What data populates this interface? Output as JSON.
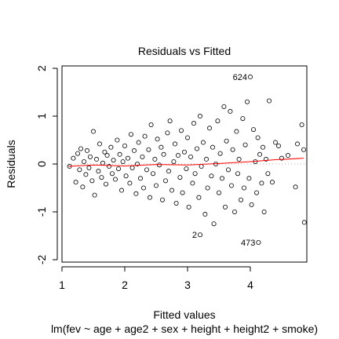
{
  "chart_data": {
    "type": "scatter",
    "title": "Residuals vs Fitted",
    "xlabel": "Fitted values",
    "subtitle": "lm(fev ~ age + age2 + sex + height + height2 + smoke)",
    "ylabel": "Residuals",
    "xlim": [
      1.0,
      4.9
    ],
    "ylim": [
      -2.05,
      2.05
    ],
    "x_ticks": [
      1,
      2,
      3,
      4
    ],
    "y_ticks": [
      -2,
      -1,
      0,
      1,
      2
    ],
    "x_tick_labels": [
      "1",
      "2",
      "3",
      "4"
    ],
    "y_tick_labels": [
      "-2",
      "-1",
      "0",
      "1",
      "2"
    ],
    "zero_line": 0,
    "smooth_color": "#ff0000",
    "point_color": "#000000",
    "smooth": [
      {
        "x": 1.1,
        "y": -0.05
      },
      {
        "x": 1.5,
        "y": -0.02
      },
      {
        "x": 2.0,
        "y": -0.04
      },
      {
        "x": 2.5,
        "y": -0.01
      },
      {
        "x": 3.0,
        "y": -0.02
      },
      {
        "x": 3.5,
        "y": 0.01
      },
      {
        "x": 4.0,
        "y": 0.05
      },
      {
        "x": 4.4,
        "y": 0.09
      },
      {
        "x": 4.85,
        "y": 0.12
      }
    ],
    "labeled_points": [
      {
        "label": "624",
        "x": 4.0,
        "y": 1.82
      },
      {
        "label": "2",
        "x": 3.2,
        "y": -1.48
      },
      {
        "label": "473",
        "x": 4.13,
        "y": -1.64
      }
    ],
    "points": [
      {
        "x": 1.12,
        "y": -0.05
      },
      {
        "x": 1.18,
        "y": 0.12
      },
      {
        "x": 1.22,
        "y": -0.38
      },
      {
        "x": 1.25,
        "y": 0.22
      },
      {
        "x": 1.28,
        "y": -0.12
      },
      {
        "x": 1.3,
        "y": 0.32
      },
      {
        "x": 1.33,
        "y": -0.48
      },
      {
        "x": 1.35,
        "y": 0.05
      },
      {
        "x": 1.38,
        "y": -0.22
      },
      {
        "x": 1.4,
        "y": 0.28
      },
      {
        "x": 1.43,
        "y": -0.08
      },
      {
        "x": 1.45,
        "y": 0.15
      },
      {
        "x": 1.48,
        "y": -0.35
      },
      {
        "x": 1.5,
        "y": 0.68
      },
      {
        "x": 1.52,
        "y": -0.65
      },
      {
        "x": 1.55,
        "y": 0.1
      },
      {
        "x": 1.58,
        "y": -0.15
      },
      {
        "x": 1.6,
        "y": 0.42
      },
      {
        "x": 1.63,
        "y": -0.28
      },
      {
        "x": 1.65,
        "y": 0.02
      },
      {
        "x": 1.68,
        "y": 0.25
      },
      {
        "x": 1.7,
        "y": -0.42
      },
      {
        "x": 1.72,
        "y": 0.18
      },
      {
        "x": 1.75,
        "y": -0.05
      },
      {
        "x": 1.78,
        "y": 0.35
      },
      {
        "x": 1.8,
        "y": -0.2
      },
      {
        "x": 1.82,
        "y": 0.08
      },
      {
        "x": 1.85,
        "y": -0.32
      },
      {
        "x": 1.88,
        "y": 0.5
      },
      {
        "x": 1.9,
        "y": -0.1
      },
      {
        "x": 1.92,
        "y": 0.2
      },
      {
        "x": 1.95,
        "y": -0.55
      },
      {
        "x": 1.97,
        "y": 0.05
      },
      {
        "x": 2.0,
        "y": 0.38
      },
      {
        "x": 2.02,
        "y": -0.25
      },
      {
        "x": 2.05,
        "y": 0.12
      },
      {
        "x": 2.08,
        "y": -0.4
      },
      {
        "x": 2.1,
        "y": 0.62
      },
      {
        "x": 2.12,
        "y": -0.08
      },
      {
        "x": 2.15,
        "y": 0.28
      },
      {
        "x": 2.18,
        "y": -0.62
      },
      {
        "x": 2.2,
        "y": 0.0
      },
      {
        "x": 2.22,
        "y": 0.45
      },
      {
        "x": 2.25,
        "y": -0.3
      },
      {
        "x": 2.28,
        "y": 0.15
      },
      {
        "x": 2.3,
        "y": -0.5
      },
      {
        "x": 2.32,
        "y": 0.58
      },
      {
        "x": 2.35,
        "y": -0.12
      },
      {
        "x": 2.38,
        "y": 0.3
      },
      {
        "x": 2.4,
        "y": -0.7
      },
      {
        "x": 2.42,
        "y": 0.82
      },
      {
        "x": 2.45,
        "y": -0.2
      },
      {
        "x": 2.48,
        "y": 0.1
      },
      {
        "x": 2.5,
        "y": -0.45
      },
      {
        "x": 2.52,
        "y": 0.52
      },
      {
        "x": 2.55,
        "y": -0.02
      },
      {
        "x": 2.58,
        "y": 0.35
      },
      {
        "x": 2.6,
        "y": -0.75
      },
      {
        "x": 2.62,
        "y": 0.2
      },
      {
        "x": 2.65,
        "y": -0.35
      },
      {
        "x": 2.68,
        "y": 0.65
      },
      {
        "x": 2.7,
        "y": -0.15
      },
      {
        "x": 2.72,
        "y": 0.9
      },
      {
        "x": 2.75,
        "y": -0.55
      },
      {
        "x": 2.78,
        "y": 0.05
      },
      {
        "x": 2.8,
        "y": 0.42
      },
      {
        "x": 2.82,
        "y": -0.82
      },
      {
        "x": 2.85,
        "y": 0.18
      },
      {
        "x": 2.88,
        "y": -0.28
      },
      {
        "x": 2.9,
        "y": 0.7
      },
      {
        "x": 2.92,
        "y": -0.6
      },
      {
        "x": 2.95,
        "y": 0.25
      },
      {
        "x": 2.98,
        "y": -0.1
      },
      {
        "x": 3.0,
        "y": 0.55
      },
      {
        "x": 3.02,
        "y": -0.9
      },
      {
        "x": 3.05,
        "y": 0.15
      },
      {
        "x": 3.08,
        "y": -0.4
      },
      {
        "x": 3.1,
        "y": 0.85
      },
      {
        "x": 3.12,
        "y": -0.2
      },
      {
        "x": 3.15,
        "y": 0.32
      },
      {
        "x": 3.18,
        "y": -0.7
      },
      {
        "x": 3.2,
        "y": 1.0
      },
      {
        "x": 3.22,
        "y": -0.05
      },
      {
        "x": 3.25,
        "y": 0.45
      },
      {
        "x": 3.28,
        "y": -1.05
      },
      {
        "x": 3.3,
        "y": 0.1
      },
      {
        "x": 3.32,
        "y": -0.5
      },
      {
        "x": 3.35,
        "y": 0.75
      },
      {
        "x": 3.38,
        "y": -0.25
      },
      {
        "x": 3.4,
        "y": 0.35
      },
      {
        "x": 3.42,
        "y": -1.25
      },
      {
        "x": 3.45,
        "y": 0.0
      },
      {
        "x": 3.48,
        "y": 0.9
      },
      {
        "x": 3.5,
        "y": -0.6
      },
      {
        "x": 3.52,
        "y": 0.22
      },
      {
        "x": 3.55,
        "y": -0.3
      },
      {
        "x": 3.58,
        "y": 1.2
      },
      {
        "x": 3.6,
        "y": -0.9
      },
      {
        "x": 3.62,
        "y": 0.48
      },
      {
        "x": 3.65,
        "y": -0.12
      },
      {
        "x": 3.68,
        "y": 1.1
      },
      {
        "x": 3.7,
        "y": -0.45
      },
      {
        "x": 3.72,
        "y": 0.3
      },
      {
        "x": 3.75,
        "y": -1.0
      },
      {
        "x": 3.78,
        "y": 0.68
      },
      {
        "x": 3.8,
        "y": -0.2
      },
      {
        "x": 3.82,
        "y": 0.1
      },
      {
        "x": 3.85,
        "y": -0.75
      },
      {
        "x": 3.88,
        "y": 0.95
      },
      {
        "x": 3.9,
        "y": -0.5
      },
      {
        "x": 3.92,
        "y": 0.4
      },
      {
        "x": 3.95,
        "y": 1.3
      },
      {
        "x": 3.98,
        "y": -0.3
      },
      {
        "x": 4.0,
        "y": 1.82
      },
      {
        "x": 4.02,
        "y": -0.85
      },
      {
        "x": 4.05,
        "y": 0.72
      },
      {
        "x": 4.08,
        "y": 0.05
      },
      {
        "x": 4.1,
        "y": -0.6
      },
      {
        "x": 4.12,
        "y": 0.55
      },
      {
        "x": 4.15,
        "y": 0.2
      },
      {
        "x": 4.18,
        "y": -0.4
      },
      {
        "x": 4.2,
        "y": 0.35
      },
      {
        "x": 4.22,
        "y": -1.0
      },
      {
        "x": 4.25,
        "y": 0.1
      },
      {
        "x": 4.28,
        "y": -0.2
      },
      {
        "x": 4.3,
        "y": 1.32
      },
      {
        "x": 4.35,
        "y": -0.38
      },
      {
        "x": 4.4,
        "y": 0.45
      },
      {
        "x": 4.45,
        "y": 0.38
      },
      {
        "x": 4.5,
        "y": 0.12
      },
      {
        "x": 4.6,
        "y": 0.18
      },
      {
        "x": 4.72,
        "y": -0.48
      },
      {
        "x": 4.75,
        "y": 0.42
      },
      {
        "x": 4.82,
        "y": 0.82
      },
      {
        "x": 4.85,
        "y": 0.3
      },
      {
        "x": 4.86,
        "y": -1.22
      },
      {
        "x": 3.2,
        "y": -1.48
      },
      {
        "x": 4.13,
        "y": -1.64
      }
    ]
  }
}
